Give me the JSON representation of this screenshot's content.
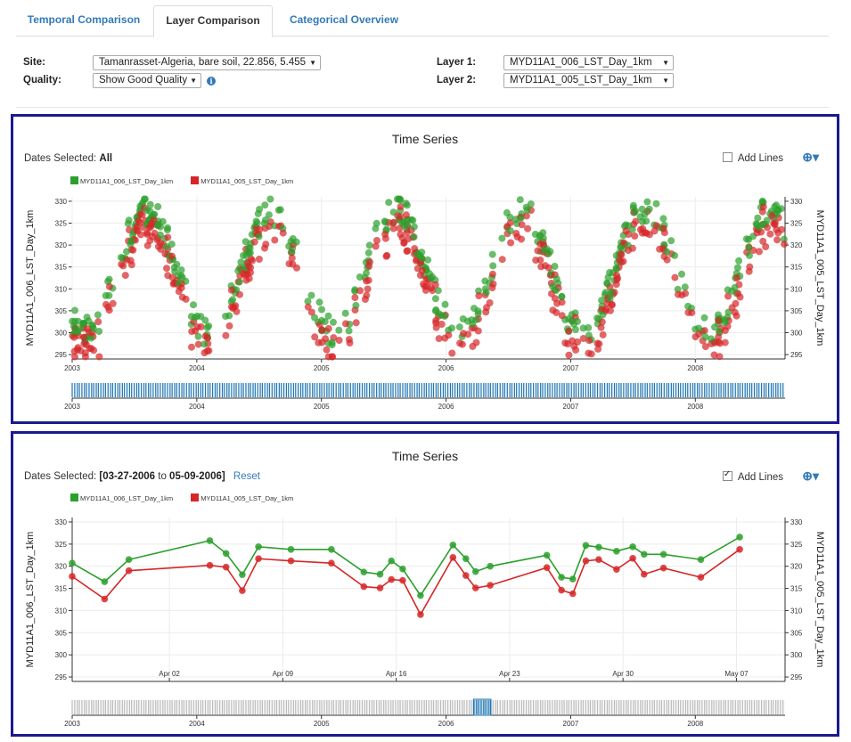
{
  "tabs": [
    {
      "label": "Temporal Comparison",
      "active": false
    },
    {
      "label": "Layer Comparison",
      "active": true
    },
    {
      "label": "Categorical Overview",
      "active": false
    }
  ],
  "controls": {
    "site_label": "Site:",
    "site_value": "Tamanrasset-Algeria, bare soil, 22.856, 5.455",
    "quality_label": "Quality:",
    "quality_value": "Show Good Quality",
    "layer1_label": "Layer 1:",
    "layer1_value": "MYD11A1_006_LST_Day_1km",
    "layer2_label": "Layer 2:",
    "layer2_value": "MYD11A1_005_LST_Day_1km"
  },
  "colors": {
    "series1": "#2ca02c",
    "series2": "#d62728",
    "navigator": "#1f77b4",
    "panel_border": "#1a1a8e",
    "link": "#337ab7"
  },
  "panel1": {
    "title": "Time Series",
    "dates_prefix": "Dates Selected:",
    "dates_value": "All",
    "add_lines_label": "Add Lines",
    "add_lines_checked": false,
    "zoom_icon": "zoom-in-icon"
  },
  "panel2": {
    "title": "Time Series",
    "dates_prefix": "Dates Selected:",
    "date_from": "[03-27-2006",
    "date_to_word": "to",
    "date_to": "05-09-2006]",
    "reset_label": "Reset",
    "add_lines_label": "Add Lines",
    "add_lines_checked": true,
    "zoom_icon": "zoom-in-icon"
  },
  "chart_data": [
    {
      "type": "scatter",
      "title": "Time Series",
      "ylabel_left": "MYD11A1_006_LST_Day_1km",
      "ylabel_right": "MYD11A1_005_LST_Day_1km",
      "ylim": [
        294,
        331
      ],
      "yticks": [
        295,
        300,
        305,
        310,
        315,
        320,
        325,
        330
      ],
      "xlim": [
        2003.0,
        2008.72
      ],
      "xticks": [
        2003,
        2004,
        2005,
        2006,
        2007,
        2008
      ],
      "series": [
        {
          "name": "MYD11A1_006_LST_Day_1km",
          "color": "#2ca02c"
        },
        {
          "name": "MYD11A1_005_LST_Day_1km",
          "color": "#d62728"
        }
      ],
      "pattern": {
        "annual_cycle": true,
        "min": 299,
        "max": 327,
        "peak_month": "Aug",
        "trough_month": "Jan"
      },
      "navigator_xticks": [
        2003,
        2004,
        2005,
        2006,
        2007,
        2008
      ],
      "grid": true
    },
    {
      "type": "line",
      "title": "Time Series",
      "ylabel_left": "MYD11A1_006_LST_Day_1km",
      "ylabel_right": "MYD11A1_005_LST_Day_1km",
      "ylim": [
        294,
        331
      ],
      "yticks": [
        295,
        300,
        305,
        310,
        315,
        320,
        325,
        330
      ],
      "x_range_days": [
        0,
        44
      ],
      "xticks": [
        {
          "label": "Apr 02",
          "day": 6
        },
        {
          "label": "Apr 09",
          "day": 13
        },
        {
          "label": "Apr 16",
          "day": 20
        },
        {
          "label": "Apr 23",
          "day": 27
        },
        {
          "label": "Apr 30",
          "day": 34
        },
        {
          "label": "May 07",
          "day": 41
        }
      ],
      "x_days": [
        0,
        2,
        3.5,
        8.5,
        9.5,
        10.5,
        11.5,
        13.5,
        16,
        18,
        19,
        19.7,
        20.4,
        21.5,
        23.5,
        24.3,
        24.9,
        25.8,
        29.3,
        30.2,
        30.9,
        31.7,
        32.5,
        33.6,
        34.6,
        35.3,
        36.5,
        38.8,
        41.2
      ],
      "series": [
        {
          "name": "MYD11A1_006_LST_Day_1km",
          "color": "#2ca02c",
          "values": [
            320.7,
            316.5,
            321.5,
            325.8,
            322.9,
            318.1,
            324.4,
            323.8,
            323.8,
            318.7,
            318.2,
            321.2,
            319.4,
            313.4,
            324.8,
            321.7,
            318.8,
            320.0,
            322.5,
            317.5,
            317.1,
            324.7,
            324.3,
            323.4,
            324.4,
            322.7,
            322.7,
            321.5,
            326.6
          ]
        },
        {
          "name": "MYD11A1_005_LST_Day_1km",
          "color": "#d62728",
          "values": [
            317.7,
            312.6,
            319.0,
            320.2,
            319.8,
            314.5,
            321.7,
            321.2,
            320.7,
            315.4,
            315.1,
            317.0,
            316.8,
            309.1,
            322.0,
            317.9,
            315.1,
            315.7,
            319.7,
            314.6,
            313.8,
            321.2,
            321.5,
            319.3,
            321.8,
            318.2,
            319.6,
            317.5,
            323.8
          ]
        }
      ],
      "navigator_xticks": [
        2003,
        2004,
        2005,
        2006,
        2007,
        2008
      ],
      "grid": true
    }
  ]
}
